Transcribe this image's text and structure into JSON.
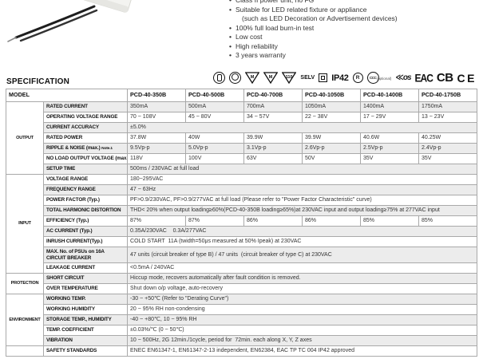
{
  "product": {
    "photo_alt": "LED driver power unit with output wires",
    "features": [
      {
        "t": "Class II power unit, no FG"
      },
      {
        "t": "Suitable for LED related fixture or appliance",
        "sub": "(such as LED Decoration or Advertisement devices)"
      },
      {
        "t": "100% full load burn-in test"
      },
      {
        "t": "Low cost"
      },
      {
        "t": "High reliability"
      },
      {
        "t": "3 years warranty"
      }
    ]
  },
  "cert_marks": [
    {
      "type": "circle-plug",
      "name": "enec-lamp-mark-icon"
    },
    {
      "type": "circle-cap",
      "name": "lamp-control-mark-icon"
    },
    {
      "type": "triangle",
      "text": "M",
      "name": "triangle-m-mark-icon"
    },
    {
      "type": "triangle",
      "text": "M",
      "name": "triangle-m2-mark-icon"
    },
    {
      "type": "triangle",
      "text": "110",
      "name": "triangle-110-mark-icon"
    },
    {
      "type": "text",
      "text": "SELV",
      "size": "sz-s",
      "name": "selv-mark"
    },
    {
      "type": "classII",
      "name": "class-ii-mark-icon"
    },
    {
      "type": "text",
      "text": "IP42",
      "size": "sz-m",
      "name": "ip42-mark"
    },
    {
      "type": "circle-text",
      "text": "R",
      "name": "r-circle-mark-icon"
    },
    {
      "type": "ccc",
      "text": "CCC",
      "sub": "(optional)",
      "name": "ccc-mark-icon"
    },
    {
      "type": "os",
      "text": "≪os",
      "name": "os-cert-mark-icon"
    },
    {
      "type": "text",
      "text": "EAC",
      "size": "sz-eac",
      "name": "eac-mark"
    },
    {
      "type": "text",
      "text": "CB",
      "size": "sz-cb",
      "name": "cb-mark"
    },
    {
      "type": "text",
      "text": "CE",
      "size": "sz-ce",
      "name": "ce-mark"
    }
  ],
  "spec": {
    "title": "SPECIFICATION",
    "model_label": "MODEL",
    "models": [
      "PCD-40-350B",
      "PCD-40-500B",
      "PCD-40-700B",
      "PCD-40-1050B",
      "PCD-40-1400B",
      "PCD-40-1750B"
    ],
    "rows": [
      {
        "section": "OUTPUT",
        "srows": 7,
        "label": "RATED CURRENT",
        "values": [
          "350mA",
          "500mA",
          "700mA",
          "1050mA",
          "1400mA",
          "1750mA"
        ]
      },
      {
        "label": "OPERATING VOLTAGE RANGE",
        "values": [
          "70 ~ 108V",
          "45 ~ 80V",
          "34 ~ 57V",
          "22 ~ 38V",
          "17 ~ 29V",
          "13 ~ 23V"
        ]
      },
      {
        "label": "CURRENT ACCURACY",
        "span": "±5.0%"
      },
      {
        "label": "RATED POWER",
        "values": [
          "37.8W",
          "40W",
          "39.9W",
          "39.9W",
          "40.6W",
          "40.25W"
        ]
      },
      {
        "label": "RIPPLE & NOISE (max.)",
        "note": "Note.1",
        "values": [
          "9.5Vp-p",
          "5.0Vp-p",
          "3.1Vp-p",
          "2.6Vp-p",
          "2.5Vp-p",
          "2.4Vp-p"
        ]
      },
      {
        "label": "NO LOAD OUTPUT VOLTAGE (max.)",
        "values": [
          "118V",
          "100V",
          "63V",
          "50V",
          "35V",
          "35V"
        ]
      },
      {
        "label": "SETUP TIME",
        "span": "500ms / 230VAC at full load"
      },
      {
        "section": "INPUT",
        "srows": 9,
        "label": "VOLTAGE RANGE",
        "span": "180~295VAC"
      },
      {
        "label": "FREQUENCY RANGE",
        "span": "47 ~ 63Hz"
      },
      {
        "label": "POWER FACTOR (Typ.)",
        "span": "PF>0.9/230VAC, PF>0.9/277VAC at full load (Please refer to \"Power Factor Characteristic\" curve)"
      },
      {
        "label": "TOTAL HARMONIC DISTORTION",
        "span": "THD< 20% when output loading≥60%(PCD-40-350B loading≥65%)at 230VAC input and output loading≥75% at 277VAC input"
      },
      {
        "label": "EFFICIENCY (Typ.)",
        "values": [
          "87%",
          "87%",
          "86%",
          "86%",
          "85%",
          "85%"
        ]
      },
      {
        "label": "AC CURRENT (Typ.)",
        "span": "0.35A/230VAC    0.3A/277VAC"
      },
      {
        "label": "INRUSH CURRENT(Typ.)",
        "span": "COLD START  11A (twidth=50μs measured at 50% Ipeak) at 230VAC"
      },
      {
        "label": "MAX. No. of PSUs on 16A\nCIRCUIT BREAKER",
        "tall": true,
        "span": "47 units (circuit breaker of type B) / 47 units  (circuit breaker of type C) at 230VAC"
      },
      {
        "label": "LEAKAGE CURRENT",
        "span": "<0.5mA / 240VAC"
      },
      {
        "section": "PROTECTION",
        "srows": 2,
        "label": "SHORT CIRCUIT",
        "span": "Hiccup mode, recovers automatically after fault condition is removed."
      },
      {
        "label": "OVER TEMPERATURE",
        "span": "Shut down o/p voltage, auto-recovery"
      },
      {
        "section": "ENVIRONMENT",
        "srows": 5,
        "label": "WORKING TEMP.",
        "span": "-30 ~ +50℃ (Refer to \"Derating Curve\")"
      },
      {
        "label": "WORKING HUMIDITY",
        "span": "20 ~ 95% RH non-condensing"
      },
      {
        "label": "STORAGE TEMP., HUMIDITY",
        "span": "-40 ~ +80℃, 10 ~ 95% RH"
      },
      {
        "label": "TEMP. COEFFICIENT",
        "span": "±0.03%/℃ (0 ~ 50℃)"
      },
      {
        "label": "VIBRATION",
        "span": "10 ~ 500Hz, 2G 12min./1cycle, period for  72min. each along X, Y, Z axes"
      },
      {
        "section": "",
        "srows": 1,
        "label": "SAFETY STANDARDS",
        "span": "ENEC EN61347-1, EN61347-2-13 independent, EN62384, EAC TP TC 004 IP42 approved"
      }
    ]
  }
}
